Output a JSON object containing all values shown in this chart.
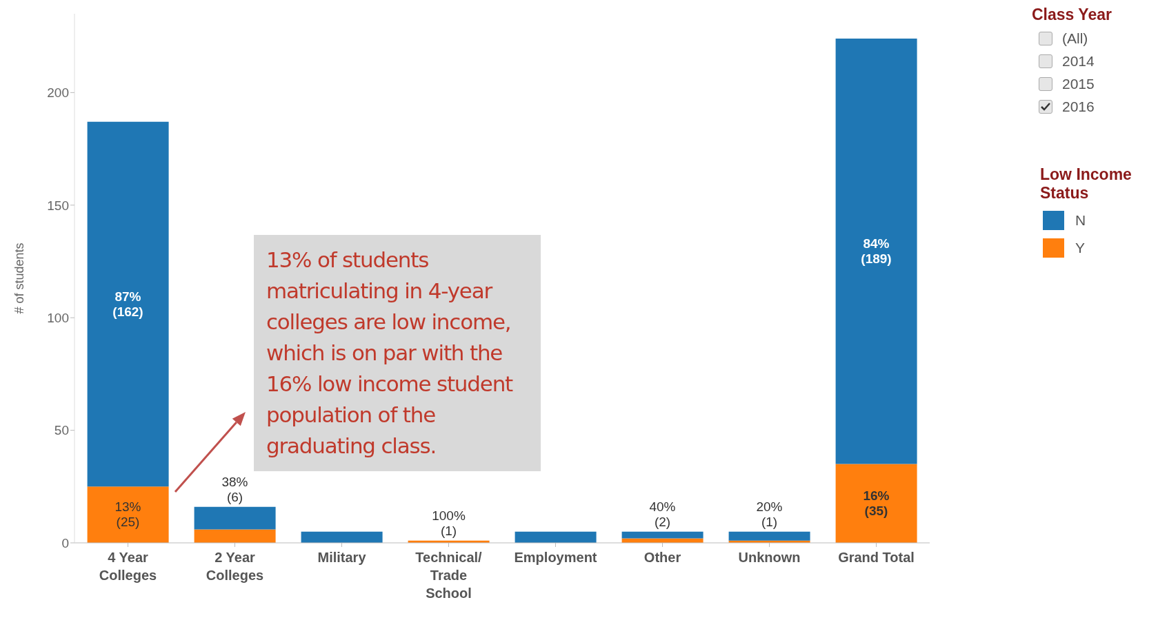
{
  "chart_data": [
    {
      "type": "bar",
      "stacked": true,
      "ylabel": "# of students",
      "legend_title": "Low Income Status",
      "legend": "right",
      "categories": [
        "4 Year Colleges",
        "2 Year Colleges",
        "Military",
        "Technical/ Trade School",
        "Employment",
        "Other",
        "Unknown",
        "Grand Total"
      ],
      "series": [
        {
          "name": "Y",
          "color": "#ff7f0e",
          "values": [
            25,
            6,
            0,
            1,
            0,
            2,
            1,
            35
          ],
          "value_labels": [
            "13%\n(25)",
            "38%\n(6)",
            null,
            "100%\n(1)",
            null,
            "40%\n(2)",
            "20%\n(1)",
            "16%\n(35)"
          ]
        },
        {
          "name": "N",
          "color": "#1f77b4",
          "values": [
            162,
            10,
            5,
            0,
            5,
            3,
            4,
            189
          ],
          "value_labels": [
            "87%\n(162)",
            null,
            null,
            null,
            null,
            null,
            null,
            "84%\n(189)"
          ]
        }
      ],
      "ylim": [
        0,
        235
      ],
      "yticks": [
        0,
        50,
        100,
        150,
        200
      ],
      "grid": false,
      "annotations": [
        "13% of students matriculating in 4-year colleges are low income, which is on par with the 16% low income student population of the graduating class."
      ]
    },
    {
      "type": "other",
      "title": "Class Year",
      "annotations": [
        "(All)",
        "2014",
        "2015",
        "2016"
      ]
    }
  ]
}
